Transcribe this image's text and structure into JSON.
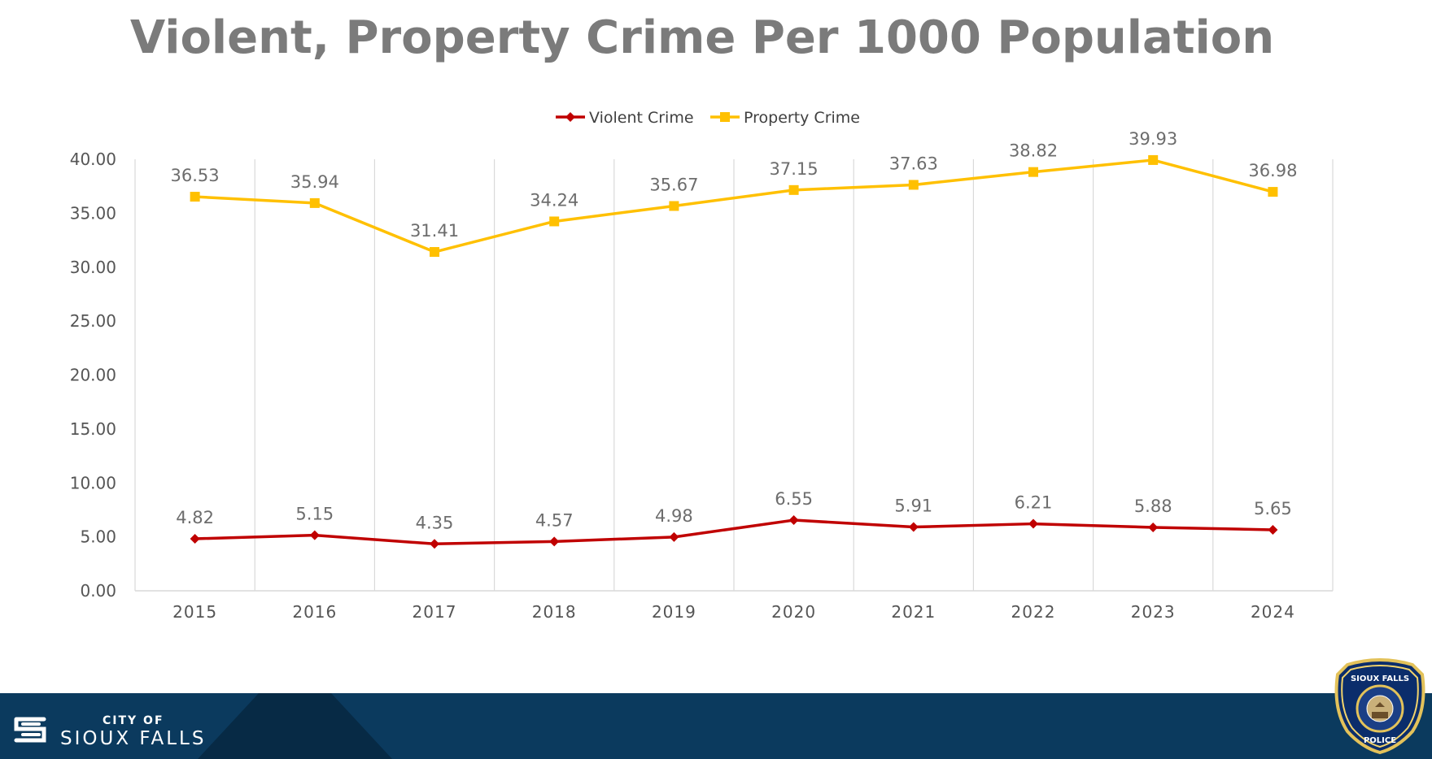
{
  "header": {
    "title": "Violent, Property Crime Per 1000 Population"
  },
  "chart_data": {
    "type": "line",
    "title": "Violent, Property Crime Per 1000 Population",
    "xlabel": "",
    "ylabel": "",
    "x": [
      "2015",
      "2016",
      "2017",
      "2018",
      "2019",
      "2020",
      "2021",
      "2022",
      "2023",
      "2024"
    ],
    "ylim": [
      0,
      40
    ],
    "yticks": [
      "0.00",
      "5.00",
      "10.00",
      "15.00",
      "20.00",
      "25.00",
      "30.00",
      "35.00",
      "40.00"
    ],
    "grid": "vertical",
    "legend_position": "top",
    "series": [
      {
        "name": "Violent Crime",
        "color": "#c00000",
        "marker": "diamond",
        "values": [
          4.82,
          5.15,
          4.35,
          4.57,
          4.98,
          6.55,
          5.91,
          6.21,
          5.88,
          5.65
        ],
        "labels": [
          "4.82",
          "5.15",
          "4.35",
          "4.57",
          "4.98",
          "6.55",
          "5.91",
          "6.21",
          "5.88",
          "5.65"
        ]
      },
      {
        "name": "Property Crime",
        "color": "#ffc000",
        "marker": "square",
        "values": [
          36.53,
          35.94,
          31.41,
          34.24,
          35.67,
          37.15,
          37.63,
          38.82,
          39.93,
          36.98
        ],
        "labels": [
          "36.53",
          "35.94",
          "31.41",
          "34.24",
          "35.67",
          "37.15",
          "37.63",
          "38.82",
          "39.93",
          "36.98"
        ]
      }
    ]
  },
  "footer": {
    "city_of": "CITY OF",
    "city_name": "SIOUX FALLS",
    "background_color": "#0b3a5e"
  },
  "badge": {
    "top_text": "SIOUX FALLS",
    "inner_text": "CITY OF SIOUX FALLS",
    "state_text": "SOUTH DAKOTA",
    "bottom_text": "POLICE"
  }
}
